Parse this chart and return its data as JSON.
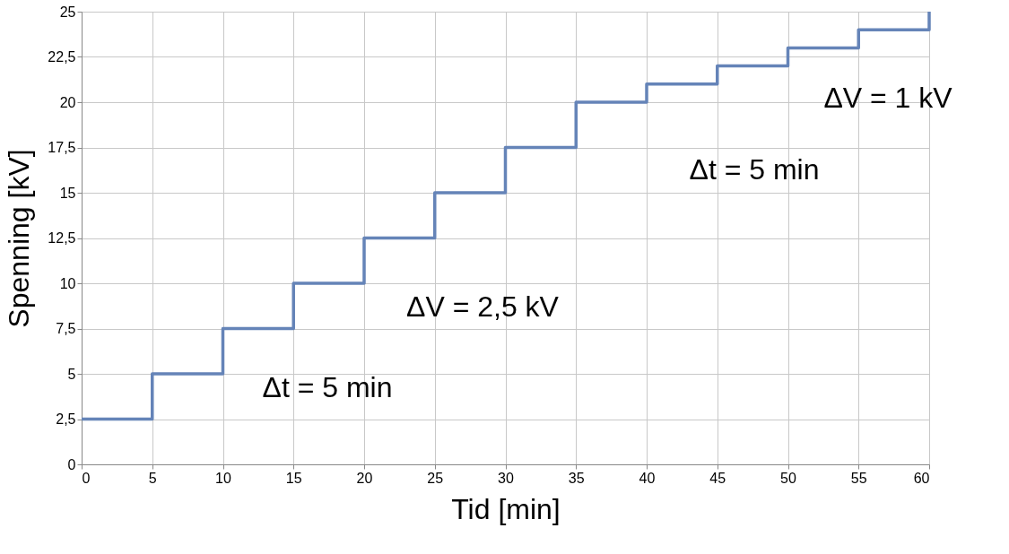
{
  "chart_data": {
    "type": "step",
    "xlabel": "Tid [min]",
    "ylabel": "Spenning [kV]",
    "x": [
      0,
      5,
      10,
      15,
      20,
      25,
      30,
      35,
      40,
      45,
      50,
      55,
      60
    ],
    "series": [
      {
        "color": "#6584b8",
        "values": [
          2.5,
          5,
          7.5,
          10,
          12.5,
          15,
          17.5,
          20,
          21,
          22,
          23,
          24,
          25
        ]
      }
    ],
    "xlim": [
      0,
      60
    ],
    "xticks": [
      0,
      5,
      10,
      15,
      20,
      25,
      30,
      35,
      40,
      45,
      50,
      55,
      60
    ],
    "ylim": [
      0,
      25
    ],
    "yticks": [
      0,
      {
        "value": 2.5,
        "label": "2,5"
      },
      5,
      {
        "value": 7.5,
        "label": "7,5"
      },
      10,
      {
        "value": 12.5,
        "label": "12,5"
      },
      15,
      {
        "value": 17.5,
        "label": "17,5"
      },
      20,
      {
        "value": 22.5,
        "label": "22,5"
      },
      25
    ],
    "grid": true,
    "marker": "none",
    "line_style": "solid",
    "annotations": [
      "ΔV = 2,5 kV",
      "Δt = 5 min",
      "ΔV = 1 kV",
      "Δt = 5 min"
    ]
  }
}
